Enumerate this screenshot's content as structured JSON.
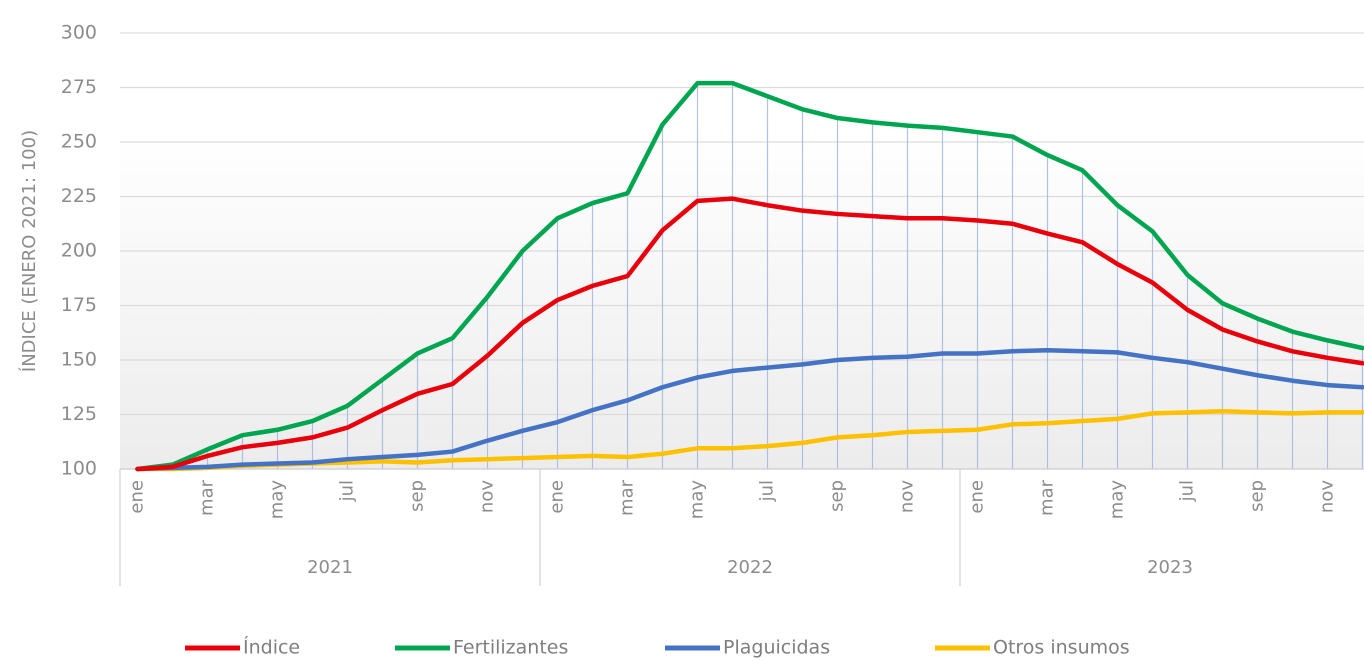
{
  "chart_data": {
    "type": "line",
    "y_label": "ÍNDICE (ENERO 2021: 100)",
    "categories": [
      "ene",
      null,
      "mar",
      null,
      "may",
      null,
      "jul",
      null,
      "sep",
      null,
      "nov",
      null,
      "ene",
      null,
      "mar",
      null,
      "may",
      null,
      "jul",
      null,
      "sep",
      null,
      "nov",
      null,
      "ene",
      null,
      "mar",
      null,
      "may",
      null,
      "jul",
      null,
      "sep",
      null,
      "nov",
      null
    ],
    "groups": [
      "2021",
      "2022",
      "2023"
    ],
    "ylim": [
      100,
      300
    ],
    "yticks": [
      100,
      125,
      150,
      175,
      200,
      225,
      250,
      275,
      300
    ],
    "grid": true,
    "legend": "bottom",
    "series": [
      {
        "name": "Índice",
        "color": "#e8000b",
        "values": [
          100,
          101,
          106,
          110,
          112,
          114.5,
          119,
          127,
          134.5,
          139,
          152,
          167,
          177.5,
          184,
          188.5,
          209.5,
          223,
          224,
          221,
          218.5,
          217,
          216,
          215,
          215,
          214,
          212.5,
          208,
          204,
          194,
          185.5,
          173,
          164,
          158.5,
          154,
          151,
          148.5
        ]
      },
      {
        "name": "Fertilizantes",
        "color": "#00a550",
        "values": [
          100,
          102,
          109,
          115.5,
          118,
          122,
          129,
          141,
          153,
          160,
          179,
          200,
          215,
          222,
          226.5,
          258,
          277,
          277,
          271,
          265,
          261,
          259,
          257.5,
          256.5,
          254.5,
          252.5,
          244,
          237,
          221,
          209,
          189,
          176,
          169,
          163,
          159,
          155.5
        ]
      },
      {
        "name": "Plaguicidas",
        "color": "#4472c4",
        "values": [
          100,
          100.5,
          101,
          102,
          102.5,
          103,
          104.5,
          105.5,
          106.5,
          108,
          113,
          117.5,
          121.5,
          127,
          131.5,
          137.5,
          142,
          145,
          146.5,
          148,
          150,
          151,
          151.5,
          153,
          153,
          154,
          154.5,
          154,
          153.5,
          151,
          149,
          146,
          143,
          140.5,
          138.5,
          137.5
        ]
      },
      {
        "name": "Otros insumos",
        "color": "#ffc000",
        "values": [
          100,
          100,
          100.5,
          101.5,
          102,
          102.5,
          103,
          103.5,
          103,
          104,
          104.5,
          105,
          105.5,
          106,
          105.5,
          107,
          109.5,
          109.5,
          110.5,
          112,
          114.5,
          115.5,
          117,
          117.5,
          118,
          120.5,
          121,
          122,
          123,
          125.5,
          126,
          126.5,
          126,
          125.5,
          126,
          126
        ]
      }
    ]
  }
}
